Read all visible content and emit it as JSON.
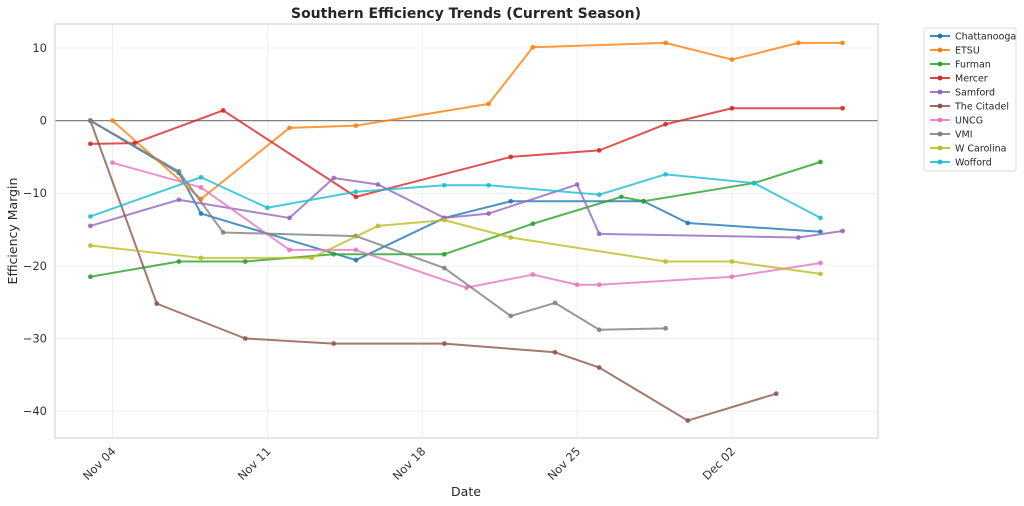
{
  "chart_data": {
    "type": "line",
    "title": "Southern Efficiency Trends (Current Season)",
    "xlabel": "Date",
    "ylabel": "Efficiency Margin",
    "x_start_date": "2024-11-03",
    "xlim_days": [
      -1.6,
      35.6
    ],
    "ylim": [
      -43.7,
      13.3
    ],
    "x_ticks": [
      {
        "day": 1,
        "label": "Nov 04"
      },
      {
        "day": 8,
        "label": "Nov 11"
      },
      {
        "day": 15,
        "label": "Nov 18"
      },
      {
        "day": 22,
        "label": "Nov 25"
      },
      {
        "day": 29,
        "label": "Dec 02"
      }
    ],
    "y_ticks": [
      10,
      0,
      -10,
      -20,
      -30,
      -40
    ],
    "y_tick_labels": [
      "10",
      "0",
      "−10",
      "−20",
      "−30",
      "−40"
    ],
    "reference_line_y": 0,
    "grid": true,
    "legend_position": "outside-top-right",
    "series": [
      {
        "name": "Chattanooga",
        "color": "#1f77b4",
        "points": [
          [
            "Nov 03",
            0
          ],
          [
            "Nov 07",
            -7.2
          ],
          [
            "Nov 08",
            -12.8
          ],
          [
            "Nov 15",
            -19.2
          ],
          [
            "Nov 19",
            -13.4
          ],
          [
            "Nov 22",
            -11.1
          ],
          [
            "Nov 28",
            -11.1
          ],
          [
            "Nov 30",
            -14.1
          ],
          [
            "Dec 06",
            -15.3
          ]
        ]
      },
      {
        "name": "ETSU",
        "color": "#ff7f0e",
        "points": [
          [
            "Nov 04",
            0
          ],
          [
            "Nov 08",
            -10.8
          ],
          [
            "Nov 12",
            -1.0
          ],
          [
            "Nov 15",
            -0.7
          ],
          [
            "Nov 21",
            2.3
          ],
          [
            "Nov 23",
            10.1
          ],
          [
            "Nov 29",
            10.7
          ],
          [
            "Dec 02",
            8.4
          ],
          [
            "Dec 05",
            10.7
          ],
          [
            "Dec 07",
            10.7
          ]
        ]
      },
      {
        "name": "Furman",
        "color": "#2ca02c",
        "points": [
          [
            "Nov 03",
            -21.5
          ],
          [
            "Nov 07",
            -19.4
          ],
          [
            "Nov 10",
            -19.4
          ],
          [
            "Nov 14",
            -18.4
          ],
          [
            "Nov 19",
            -18.4
          ],
          [
            "Nov 23",
            -14.2
          ],
          [
            "Nov 27",
            -10.5
          ],
          [
            "Nov 28",
            -11.1
          ],
          [
            "Dec 03",
            -8.6
          ],
          [
            "Dec 06",
            -5.7
          ]
        ]
      },
      {
        "name": "Mercer",
        "color": "#d62728",
        "points": [
          [
            "Nov 03",
            -3.2
          ],
          [
            "Nov 05",
            -3.1
          ],
          [
            "Nov 09",
            1.4
          ],
          [
            "Nov 15",
            -10.5
          ],
          [
            "Nov 22",
            -5.0
          ],
          [
            "Nov 26",
            -4.1
          ],
          [
            "Nov 29",
            -0.5
          ],
          [
            "Dec 02",
            1.7
          ],
          [
            "Dec 07",
            1.7
          ]
        ]
      },
      {
        "name": "Samford",
        "color": "#9467bd",
        "points": [
          [
            "Nov 03",
            -14.5
          ],
          [
            "Nov 07",
            -10.9
          ],
          [
            "Nov 12",
            -13.4
          ],
          [
            "Nov 14",
            -7.9
          ],
          [
            "Nov 16",
            -8.8
          ],
          [
            "Nov 19",
            -13.4
          ],
          [
            "Nov 21",
            -12.8
          ],
          [
            "Nov 25",
            -8.8
          ],
          [
            "Nov 26",
            -15.6
          ],
          [
            "Dec 05",
            -16.1
          ],
          [
            "Dec 07",
            -15.2
          ]
        ]
      },
      {
        "name": "The Citadel",
        "color": "#8c564b",
        "points": [
          [
            "Nov 03",
            0
          ],
          [
            "Nov 06",
            -25.2
          ],
          [
            "Nov 10",
            -30.0
          ],
          [
            "Nov 14",
            -30.7
          ],
          [
            "Nov 19",
            -30.7
          ],
          [
            "Nov 24",
            -31.9
          ],
          [
            "Nov 26",
            -34.0
          ],
          [
            "Nov 30",
            -41.3
          ],
          [
            "Dec 04",
            -37.6
          ]
        ]
      },
      {
        "name": "UNCG",
        "color": "#e377c2",
        "points": [
          [
            "Nov 04",
            -5.8
          ],
          [
            "Nov 08",
            -9.2
          ],
          [
            "Nov 12",
            -17.8
          ],
          [
            "Nov 15",
            -17.8
          ],
          [
            "Nov 20",
            -23.0
          ],
          [
            "Nov 23",
            -21.2
          ],
          [
            "Nov 25",
            -22.6
          ],
          [
            "Nov 26",
            -22.6
          ],
          [
            "Dec 02",
            -21.5
          ],
          [
            "Dec 06",
            -19.6
          ]
        ]
      },
      {
        "name": "VMI",
        "color": "#7f7f7f",
        "points": [
          [
            "Nov 03",
            0
          ],
          [
            "Nov 07",
            -7.0
          ],
          [
            "Nov 09",
            -15.4
          ],
          [
            "Nov 15",
            -15.9
          ],
          [
            "Nov 19",
            -20.3
          ],
          [
            "Nov 22",
            -26.9
          ],
          [
            "Nov 24",
            -25.1
          ],
          [
            "Nov 26",
            -28.8
          ],
          [
            "Nov 29",
            -28.6
          ]
        ]
      },
      {
        "name": "W Carolina",
        "color": "#bcbd22",
        "points": [
          [
            "Nov 03",
            -17.2
          ],
          [
            "Nov 08",
            -18.9
          ],
          [
            "Nov 13",
            -18.9
          ],
          [
            "Nov 16",
            -14.5
          ],
          [
            "Nov 19",
            -13.7
          ],
          [
            "Nov 22",
            -16.1
          ],
          [
            "Nov 29",
            -19.4
          ],
          [
            "Dec 02",
            -19.4
          ],
          [
            "Dec 06",
            -21.1
          ]
        ]
      },
      {
        "name": "Wofford",
        "color": "#17becf",
        "points": [
          [
            "Nov 03",
            -13.2
          ],
          [
            "Nov 08",
            -7.8
          ],
          [
            "Nov 11",
            -12.0
          ],
          [
            "Nov 15",
            -9.8
          ],
          [
            "Nov 19",
            -8.9
          ],
          [
            "Nov 21",
            -8.9
          ],
          [
            "Nov 26",
            -10.2
          ],
          [
            "Nov 29",
            -7.4
          ],
          [
            "Dec 03",
            -8.6
          ],
          [
            "Dec 06",
            -13.4
          ]
        ]
      }
    ]
  }
}
